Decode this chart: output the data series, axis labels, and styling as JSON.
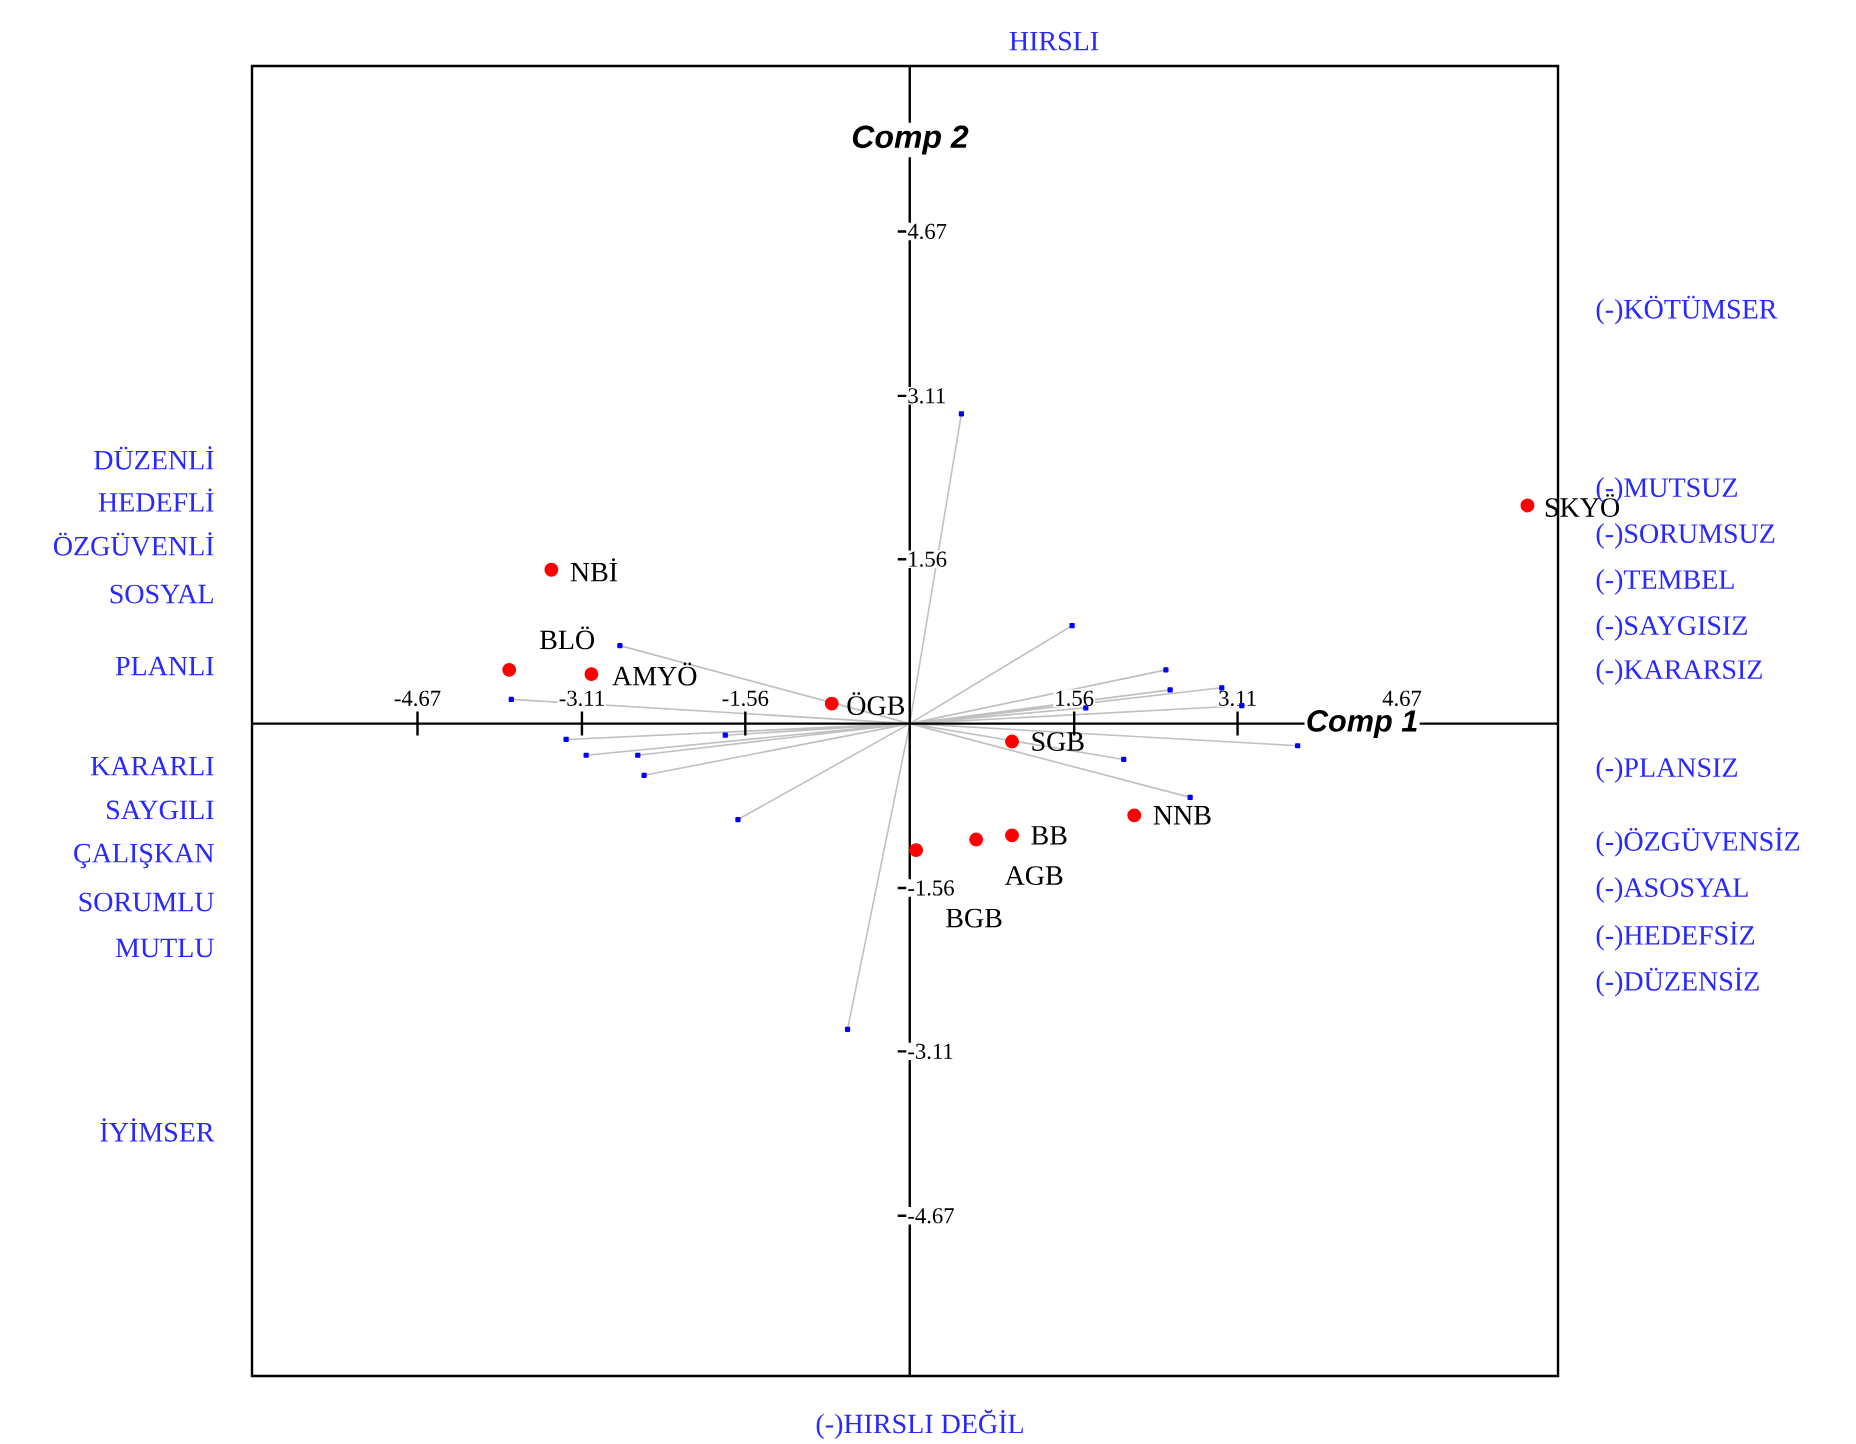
{
  "chart_data": {
    "type": "scatter",
    "xlabel": "Comp 1",
    "ylabel": "Comp 2",
    "xlim": [
      -6.24,
      6.15
    ],
    "ylim": [
      -6.19,
      6.24
    ],
    "xticks": [
      -4.67,
      -3.11,
      -1.56,
      1.56,
      3.11,
      4.67
    ],
    "yticks": [
      -4.67,
      -3.11,
      -1.56,
      1.56,
      3.11,
      4.67
    ],
    "series": [
      {
        "type": "line",
        "color": "#c0c0c0",
        "marker": "square",
        "x": [
          0,
          -3.78,
          null,
          0,
          -2.75,
          null,
          0,
          -3.26,
          null,
          0,
          -3.07,
          null,
          0,
          -2.58,
          null,
          0,
          -2.52,
          null,
          0,
          -1.75,
          null,
          0,
          -1.63,
          null,
          0,
          1.54,
          null,
          0,
          2.43,
          null,
          0,
          2.47,
          null,
          0,
          2.96,
          null,
          0,
          3.15,
          null,
          0,
          1.67,
          null,
          0,
          3.68,
          null,
          0,
          2.03,
          null,
          0,
          2.66,
          null,
          0,
          0.49,
          null,
          0,
          -0.59
        ],
        "values": [
          0,
          0.23,
          null,
          0,
          0.74,
          null,
          0,
          -0.15,
          null,
          0,
          -0.3,
          null,
          0,
          -0.3,
          null,
          0,
          -0.49,
          null,
          0,
          -0.11,
          null,
          0,
          -0.91,
          null,
          0,
          0.93,
          null,
          0,
          0.51,
          null,
          0,
          0.32,
          null,
          0,
          0.34,
          null,
          0,
          0.17,
          null,
          0,
          0.15,
          null,
          0,
          -0.21,
          null,
          0,
          -0.34,
          null,
          0,
          -0.7,
          null,
          0,
          2.94,
          null,
          0,
          -2.9
        ]
      },
      {
        "color": "#ff0000",
        "marker": "circle",
        "x": [
          5.86,
          -3.4,
          -3.8,
          -3.02,
          -0.74,
          0.97,
          2.13,
          0.97,
          0.63,
          0.06
        ],
        "values": [
          2.07,
          1.46,
          0.51,
          0.47,
          0.19,
          -0.17,
          -0.87,
          -1.06,
          -1.1,
          -1.2
        ]
      }
    ],
    "annotations": [
      {
        "text": "SKYÖ",
        "x": 5.86,
        "y": 2.07
      },
      {
        "text": "NBİ",
        "x": -3.4,
        "y": 1.46
      },
      {
        "text": "BLÖ",
        "x": -3.8,
        "y": 0.51
      },
      {
        "text": "AMYÖ",
        "x": -3.02,
        "y": 0.47
      },
      {
        "text": "ÖGB",
        "x": -0.74,
        "y": 0.19
      },
      {
        "text": "SGB",
        "x": 0.97,
        "y": -0.17
      },
      {
        "text": "NNB",
        "x": 2.13,
        "y": -0.87
      },
      {
        "text": "BB",
        "x": 0.97,
        "y": -1.06
      },
      {
        "text": "AGB",
        "x": 0.63,
        "y": -1.1
      },
      {
        "text": "BGB",
        "x": 0.06,
        "y": -1.2
      },
      "HIRSLI",
      "(-)HIRSLI DEĞİL",
      "DÜZENLİ",
      "HEDEFLİ",
      "ÖZGÜVENLİ",
      "SOSYAL",
      "PLANLI",
      "KARARLI",
      "SAYGILI",
      "ÇALIŞKAN",
      "SORUMLU",
      "MUTLU",
      "İYİMSER",
      "(-)KÖTÜMSER",
      "(-)MUTSUZ",
      "(-)SORUMSUZ",
      "(-)TEMBEL",
      "(-)SAYGISIZ",
      "(-)KARARSIZ",
      "(-)PLANSIZ",
      "(-)ÖZGÜVENSİZ",
      "(-)ASOSYAL",
      "(-)HEDEFSİZ",
      "(-)DÜZENSİZ"
    ]
  }
}
